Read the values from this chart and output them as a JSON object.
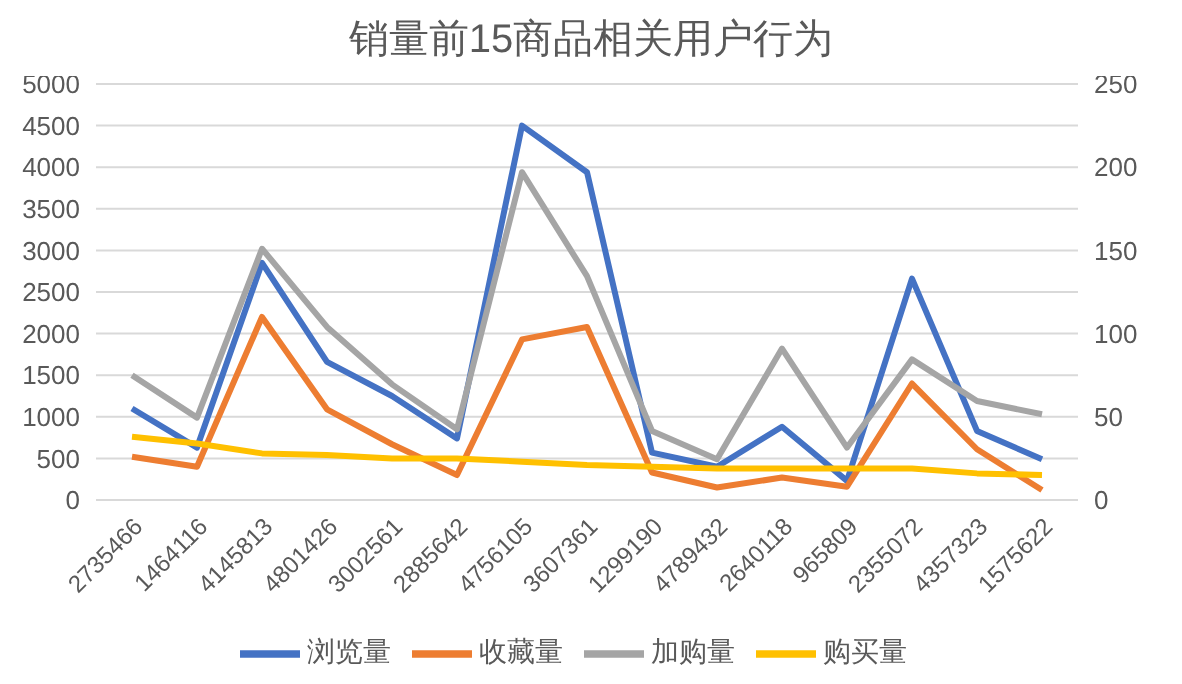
{
  "chart_data": {
    "type": "line",
    "title": "销量前15商品相关用户行为",
    "categories": [
      "2735466",
      "1464116",
      "4145813",
      "4801426",
      "3002561",
      "2885642",
      "4756105",
      "3607361",
      "1299190",
      "4789432",
      "2640118",
      "965809",
      "2355072",
      "4357323",
      "1575622"
    ],
    "series": [
      {
        "name": "浏览量",
        "color": "#4472c4",
        "values": [
          1100,
          630,
          2850,
          1660,
          1250,
          740,
          4500,
          3940,
          570,
          400,
          880,
          230,
          2660,
          830,
          490
        ]
      },
      {
        "name": "收藏量",
        "color": "#ed7d31",
        "values": [
          520,
          400,
          2200,
          1090,
          670,
          300,
          1930,
          2080,
          330,
          150,
          270,
          160,
          1400,
          610,
          120
        ]
      },
      {
        "name": "加购量",
        "color": "#a5a5a5",
        "values": [
          1500,
          990,
          3020,
          2080,
          1390,
          850,
          3940,
          2690,
          830,
          490,
          1820,
          630,
          1690,
          1190,
          1030
        ]
      },
      {
        "name": "购买量",
        "color": "#ffc000",
        "axis": "y2",
        "values": [
          38,
          34,
          28,
          27,
          25,
          25,
          23,
          21,
          20,
          19,
          19,
          19,
          19,
          16,
          15
        ]
      }
    ],
    "ylim": [
      0,
      5000
    ],
    "yticks": [
      0,
      500,
      1000,
      1500,
      2000,
      2500,
      3000,
      3500,
      4000,
      4500,
      5000
    ],
    "y2lim": [
      0,
      250
    ],
    "y2ticks": [
      0,
      50,
      100,
      150,
      200,
      250
    ],
    "grid": "y",
    "legend": "bottom",
    "marker": "none",
    "line_style": "solid"
  }
}
